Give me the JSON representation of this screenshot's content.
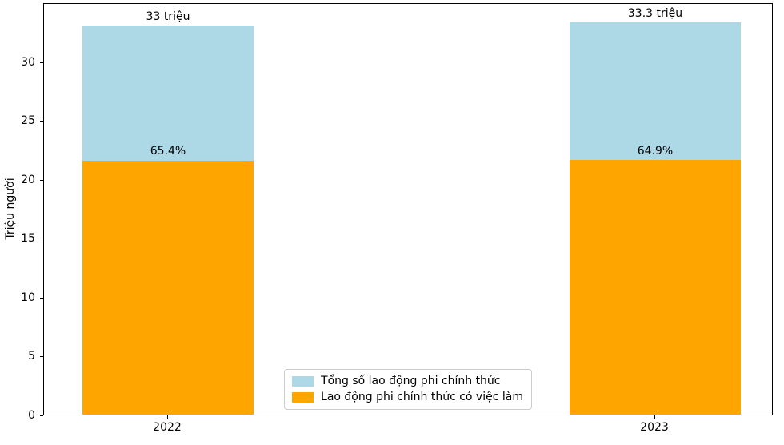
{
  "chart_data": {
    "type": "bar",
    "categories": [
      "2022",
      "2023"
    ],
    "series": [
      {
        "name": "Tổng số lao động phi chính thức",
        "color": "#ADD8E6",
        "values": [
          33,
          33.3
        ],
        "bar_labels": [
          "33 triệu",
          "33.3 triệu"
        ]
      },
      {
        "name": "Lao động phi chính thức có việc làm",
        "color": "#FFA500",
        "values": [
          21.58,
          21.61
        ],
        "bar_labels": [
          "65.4%",
          "64.9%"
        ]
      }
    ],
    "xlabel": "",
    "ylabel": "Triệu người",
    "yticks": [
      0,
      5,
      10,
      15,
      20,
      25,
      30
    ],
    "ylim": [
      0,
      35
    ],
    "grid": false,
    "legend_position": "lower center",
    "background_color": "#ffffff",
    "spine_color": "#000000",
    "bar_value_unit": "triệu người"
  }
}
